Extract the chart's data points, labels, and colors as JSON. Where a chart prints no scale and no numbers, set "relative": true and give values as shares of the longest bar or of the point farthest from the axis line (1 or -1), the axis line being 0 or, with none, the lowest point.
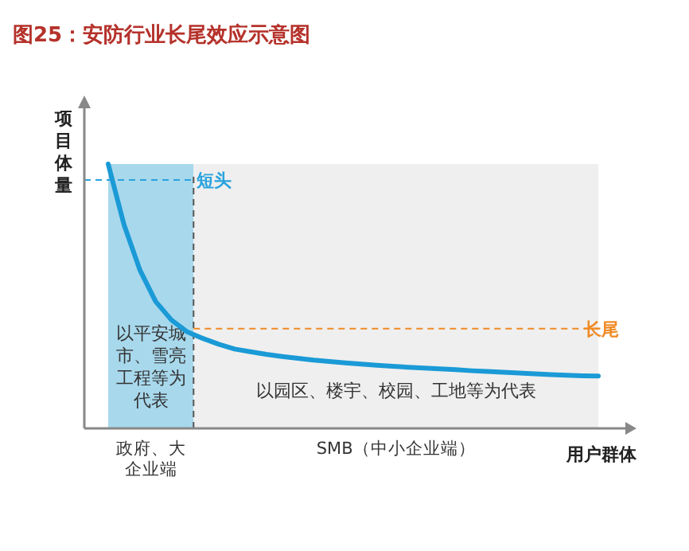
{
  "chart_data": {
    "type": "line",
    "relative": true,
    "title": "图25：安防行业长尾效应示意图",
    "xlabel": "用户群体",
    "ylabel": "项目体量",
    "categories": [
      null,
      null,
      null,
      null,
      null,
      null,
      null,
      null,
      null,
      null,
      null,
      null,
      null,
      null,
      null,
      null,
      null,
      null,
      null,
      null,
      null,
      null,
      null,
      null,
      null,
      null,
      null,
      null,
      null,
      null,
      null,
      null
    ],
    "series": [
      {
        "color": "#1a9ad6",
        "values": [
          1,
          0.77,
          0.6,
          0.48,
          0.41,
          0.365,
          0.34,
          0.318,
          0.3,
          0.29,
          0.28,
          0.272,
          0.265,
          0.258,
          0.253,
          0.248,
          0.243,
          0.239,
          0.235,
          0.231,
          0.228,
          0.225,
          0.222,
          0.218,
          0.215,
          0.212,
          0.209,
          0.206,
          0.203,
          0.201,
          0.199,
          0.198
        ]
      }
    ],
    "ref_lines": [
      {
        "axis": "y",
        "value": 0.94,
        "label": "短头",
        "color": "#29a3dd",
        "line_style": "dashed"
      },
      {
        "axis": "y",
        "value": 0.377,
        "label": "长尾",
        "color": "#f08a24",
        "line_style": "dashed"
      }
    ],
    "annotations": [
      "以平安城市、雪亮工程等为代表",
      "以园区、楼宇、校园、工地等为代表",
      "政府、大企业端",
      "SMB（中小企业端）"
    ]
  }
}
